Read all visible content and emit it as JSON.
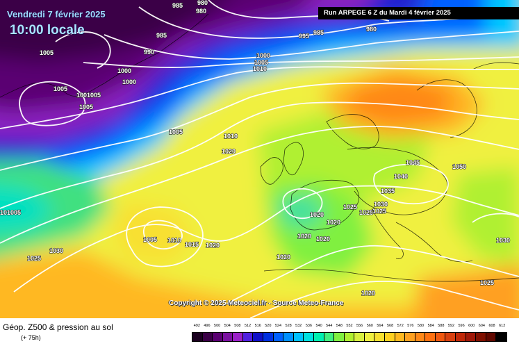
{
  "title": {
    "date": "Vendredi 7 février 2025",
    "time": "10:00 locale"
  },
  "run_label": "Run ARPEGE 6 Z du Mardi 4 février 2025",
  "copyright": "Copyright © 2025 Meteociel.fr - Source Meteo-France",
  "footer": {
    "title": "Géop. Z500 & pression au sol",
    "subtitle": "(+ 75h)"
  },
  "legend": {
    "labels": [
      "492",
      "496",
      "500",
      "504",
      "508",
      "512",
      "516",
      "520",
      "524",
      "528",
      "532",
      "536",
      "540",
      "544",
      "548",
      "552",
      "556",
      "560",
      "564",
      "568",
      "572",
      "576",
      "580",
      "584",
      "588",
      "592",
      "596",
      "600",
      "604",
      "608",
      "612"
    ],
    "colors": [
      "#1a001f",
      "#3a0046",
      "#5a0072",
      "#7a10a0",
      "#9a20c8",
      "#5020e0",
      "#1010c8",
      "#0030e0",
      "#0060ff",
      "#0090ff",
      "#00c0ff",
      "#00e0e0",
      "#00f0b0",
      "#40f080",
      "#80f040",
      "#b0f030",
      "#d8f040",
      "#f0f040",
      "#f8e030",
      "#ffd020",
      "#ffb820",
      "#ffa020",
      "#ff8818",
      "#ff7010",
      "#f05810",
      "#d84010",
      "#c02808",
      "#a01808",
      "#801000",
      "#600800",
      "#000000"
    ]
  },
  "isobars": [
    {
      "id": "980a",
      "label": "980"
    },
    {
      "id": "985a",
      "label": "985"
    },
    {
      "id": "980b",
      "label": "980"
    },
    {
      "id": "985b",
      "label": "985"
    },
    {
      "id": "995",
      "label": "995"
    },
    {
      "id": "985c",
      "label": "985"
    },
    {
      "id": "980c",
      "label": "980"
    },
    {
      "id": "990",
      "label": "990"
    },
    {
      "id": "1000a",
      "label": "1000"
    },
    {
      "id": "1005a",
      "label": "1005"
    },
    {
      "id": "1010a",
      "label": "1010"
    },
    {
      "id": "1000b",
      "label": "1000"
    },
    {
      "id": "1000c",
      "label": "1000"
    },
    {
      "id": "1005b",
      "label": "1005"
    },
    {
      "id": "1005c",
      "label": "1005"
    },
    {
      "id": "1000d",
      "label": "1001005"
    },
    {
      "id": "1005d",
      "label": "1005"
    },
    {
      "id": "1005e",
      "label": "1005"
    },
    {
      "id": "1010b",
      "label": "1010"
    },
    {
      "id": "1020a",
      "label": "1020"
    },
    {
      "id": "1045",
      "label": "1045"
    },
    {
      "id": "1050",
      "label": "1050"
    },
    {
      "id": "1040",
      "label": "1040"
    },
    {
      "id": "1035",
      "label": "1035"
    },
    {
      "id": "1030a",
      "label": "1030"
    },
    {
      "id": "1025a",
      "label": "1025"
    },
    {
      "id": "1025b",
      "label": "1025"
    },
    {
      "id": "1025c",
      "label": "1025"
    },
    {
      "id": "1020b",
      "label": "1020"
    },
    {
      "id": "1020c",
      "label": "1020"
    },
    {
      "id": "1020d",
      "label": "1020"
    },
    {
      "id": "1020e",
      "label": "1020"
    },
    {
      "id": "1020f",
      "label": "1020"
    },
    {
      "id": "1005f",
      "label": "1005"
    },
    {
      "id": "1010c",
      "label": "1010"
    },
    {
      "id": "1015",
      "label": "1015"
    },
    {
      "id": "1020g",
      "label": "1020"
    },
    {
      "id": "1030b",
      "label": "1030"
    },
    {
      "id": "1025d",
      "label": "1025"
    },
    {
      "id": "1010d",
      "label": "101005"
    },
    {
      "id": "1030c",
      "label": "1030"
    },
    {
      "id": "1025e",
      "label": "1025"
    },
    {
      "id": "1020h",
      "label": "1020"
    }
  ]
}
